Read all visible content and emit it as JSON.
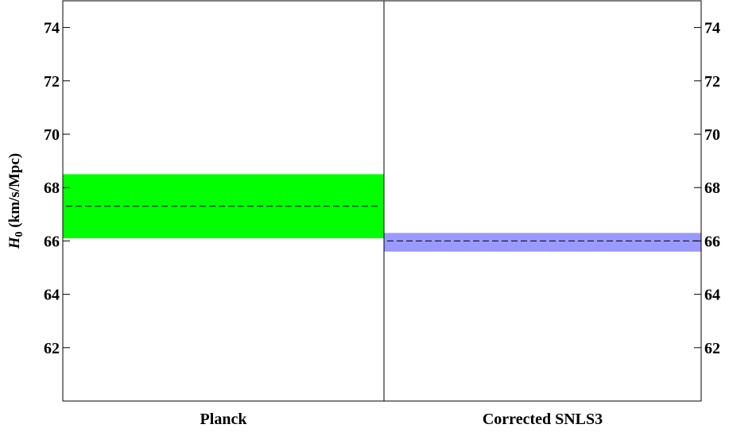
{
  "chart_data": {
    "type": "bar",
    "ylabel_symbol": "H",
    "ylabel_subscript": "0",
    "ylabel_unit": " (km/s/Mpc)",
    "xlabel": "",
    "ylim": [
      60,
      75
    ],
    "yticks": [
      62,
      64,
      66,
      68,
      70,
      72,
      74
    ],
    "grid": false,
    "categories": [
      "Planck",
      "Corrected SNLS3"
    ],
    "bands": [
      {
        "category": "Planck",
        "low": 66.1,
        "high": 68.5,
        "central": 67.3,
        "color": "#00ff00"
      },
      {
        "category": "Corrected SNLS3",
        "low": 65.6,
        "high": 66.3,
        "central": 66.0,
        "color": "#9999ff"
      }
    ]
  }
}
